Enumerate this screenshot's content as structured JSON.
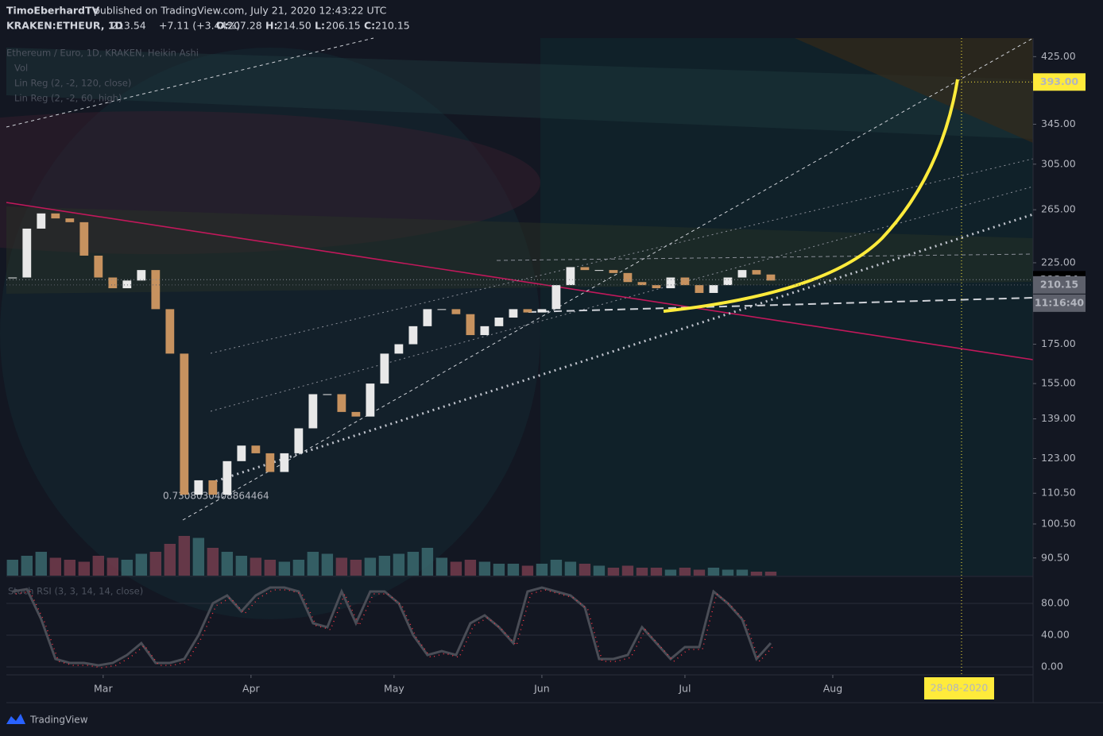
{
  "header": {
    "author": "TimoEberhardTV",
    "published": "published on TradingView.com, July 21, 2020 12:43:22 UTC",
    "symbol": "KRAKEN:ETHEUR, 1D",
    "last": "213.54",
    "change": "+7.11 (+3.44%)",
    "ohlc": [
      {
        "label": "O:",
        "value": "207.28"
      },
      {
        "label": "H:",
        "value": "214.50"
      },
      {
        "label": "L:",
        "value": "206.15"
      },
      {
        "label": "C:",
        "value": "210.15"
      }
    ]
  },
  "legend": [
    "Ethereum / Euro, 1D, KRAKEN, Heikin Ashi",
    "Vol",
    "Lin Reg (2, -2, 120, close)",
    "Lin Reg (2, -2, 60, high)"
  ],
  "fib_label": "0.7308030408864464",
  "footer": "TradingView",
  "chart_data": {
    "type": "candlestick",
    "log_scale": true,
    "x": [
      -19,
      -16,
      -13,
      -10,
      -7,
      -4,
      -1,
      2,
      5,
      8,
      11,
      14,
      17,
      20,
      23,
      26,
      29,
      32,
      35,
      38,
      41,
      44,
      47,
      50,
      53,
      56,
      59,
      62,
      65,
      68,
      71,
      74,
      77,
      80,
      83,
      86,
      89,
      92,
      95,
      98,
      101,
      104,
      107,
      110,
      113,
      116,
      119,
      122,
      125,
      128,
      131,
      134,
      137,
      140
    ],
    "closes": [
      215,
      250,
      262,
      258,
      255,
      230,
      215,
      208,
      213,
      220,
      195,
      170,
      110,
      115,
      110,
      122,
      128,
      125,
      118,
      125,
      135,
      150,
      150,
      142,
      140,
      155,
      170,
      175,
      185,
      195,
      195,
      192,
      180,
      185,
      190,
      195,
      193,
      195,
      210,
      222,
      220,
      220,
      218,
      212,
      210,
      208,
      215,
      210,
      205,
      210,
      215,
      220,
      217,
      213
    ],
    "volumes": [
      40,
      50,
      60,
      45,
      40,
      35,
      50,
      45,
      40,
      55,
      60,
      80,
      100,
      95,
      70,
      60,
      50,
      45,
      40,
      35,
      40,
      60,
      55,
      45,
      40,
      45,
      50,
      55,
      60,
      70,
      45,
      35,
      40,
      35,
      30,
      30,
      25,
      30,
      40,
      35,
      30,
      25,
      20,
      25,
      20,
      20,
      15,
      20,
      15,
      20,
      15,
      15,
      10,
      10
    ],
    "volume_lim": [
      0,
      100
    ],
    "up_color": "#e8e8e8",
    "down_color": "#c7925f",
    "vol_up_color": "#3d6e73",
    "vol_down_color": "#7a3e50",
    "xlim": [
      -20.3,
      195
    ],
    "xticks": [
      {
        "value": 0,
        "label": "Mar"
      },
      {
        "value": 31,
        "label": "Apr"
      },
      {
        "value": 61,
        "label": "May"
      },
      {
        "value": 92,
        "label": "Jun"
      },
      {
        "value": 122,
        "label": "Jul"
      },
      {
        "value": 153,
        "label": "Aug"
      }
    ],
    "ylim": [
      85.7,
      450
    ],
    "yticks": [
      {
        "value": 425,
        "label": "425.00"
      },
      {
        "value": 345,
        "label": "345.00"
      },
      {
        "value": 305,
        "label": "305.00"
      },
      {
        "value": 265,
        "label": "265.00"
      },
      {
        "value": 225,
        "label": "225.00"
      },
      {
        "value": 175,
        "label": "175.00"
      },
      {
        "value": 155,
        "label": "155.00"
      },
      {
        "value": 139,
        "label": "139.00"
      },
      {
        "value": 123,
        "label": "123.00"
      },
      {
        "value": 110.5,
        "label": "110.50"
      },
      {
        "value": 100.5,
        "label": "100.50"
      },
      {
        "value": 90.5,
        "label": "90.50"
      }
    ],
    "price_flags": [
      {
        "value": 393,
        "label": "393.00",
        "color": "#ffeb3b",
        "text_color": "#000000"
      },
      {
        "value": 213.54,
        "color": "#000000",
        "text_color": "#ffffff"
      },
      {
        "value": 210.15,
        "color": "#5d606b",
        "text_color": "#ffffff"
      }
    ],
    "countdown": "11:16:40",
    "target_date": {
      "value": 180,
      "label": "28-08-2020"
    },
    "rsi": {
      "name": "Stoch RSI (3, 3, 14, 14, close)",
      "color": "#4a4d56",
      "values": [
        95,
        98,
        60,
        10,
        5,
        5,
        2,
        5,
        15,
        30,
        5,
        5,
        10,
        40,
        80,
        90,
        70,
        90,
        100,
        100,
        95,
        55,
        50,
        95,
        55,
        95,
        95,
        80,
        40,
        15,
        20,
        15,
        55,
        65,
        50,
        30,
        95,
        100,
        95,
        90,
        75,
        10,
        10,
        15,
        50,
        30,
        10,
        25,
        25,
        95,
        80,
        60,
        10,
        30
      ],
      "ylim": [
        -10,
        112
      ],
      "yticks": [
        {
          "value": 0,
          "label": "0.00"
        },
        {
          "value": 40,
          "label": "40.00"
        },
        {
          "value": 80,
          "label": "80.00"
        }
      ]
    }
  }
}
